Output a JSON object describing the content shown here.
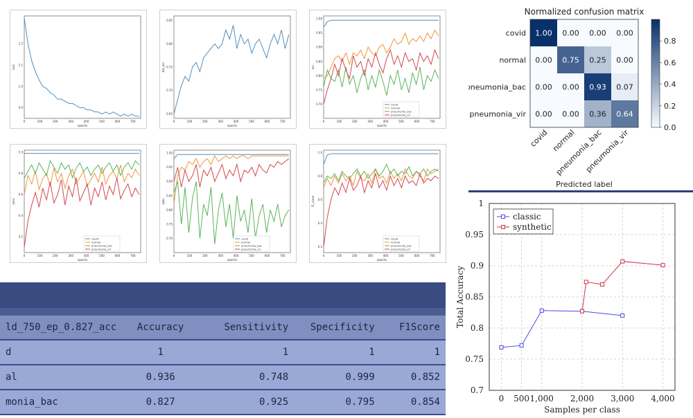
{
  "training_plots": [
    {
      "id": "loss",
      "ylabel": "loss",
      "xlabel": "epochs",
      "xlim": [
        0,
        750
      ],
      "ylim": [
        0.85,
        1.33
      ],
      "yticks": [
        "1.2",
        "1.1",
        "1.0",
        "0.9"
      ],
      "xticks": [
        "0",
        "100",
        "200",
        "300",
        "400",
        "500",
        "600",
        "700"
      ],
      "series": [
        {
          "color": "#4f8fbf",
          "y": [
            1.32,
            1.2,
            1.12,
            1.07,
            1.03,
            1.0,
            0.99,
            0.97,
            0.96,
            0.94,
            0.94,
            0.93,
            0.92,
            0.92,
            0.91,
            0.9,
            0.9,
            0.89,
            0.89,
            0.88,
            0.88,
            0.87,
            0.88,
            0.87,
            0.88,
            0.87,
            0.86,
            0.87,
            0.86,
            0.87,
            0.86,
            0.86
          ]
        }
      ]
    },
    {
      "id": "bal_acc",
      "ylabel": "bal_acc",
      "xlabel": "epochs",
      "xlim": [
        0,
        750
      ],
      "ylim": [
        0.64,
        0.86
      ],
      "yticks": [
        "0.85",
        "0.80",
        "0.75",
        "0.70",
        "0.65"
      ],
      "xticks": [
        "0",
        "100",
        "200",
        "300",
        "400",
        "500",
        "600",
        "700"
      ],
      "series": [
        {
          "color": "#4f8fbf",
          "y": [
            0.65,
            0.68,
            0.71,
            0.73,
            0.72,
            0.75,
            0.76,
            0.74,
            0.77,
            0.78,
            0.79,
            0.8,
            0.79,
            0.8,
            0.83,
            0.81,
            0.84,
            0.79,
            0.82,
            0.8,
            0.81,
            0.78,
            0.8,
            0.81,
            0.79,
            0.77,
            0.8,
            0.82,
            0.8,
            0.83,
            0.79,
            0.82
          ]
        }
      ]
    },
    {
      "id": "acc",
      "ylabel": "acc",
      "xlabel": "epochs",
      "xlim": [
        0,
        750
      ],
      "ylim": [
        0.65,
        1.01
      ],
      "yticks": [
        "1.00",
        "0.95",
        "0.90",
        "0.85",
        "0.80",
        "0.75",
        "0.70"
      ],
      "xticks": [
        "0",
        "100",
        "200",
        "300",
        "400",
        "500",
        "600",
        "700"
      ],
      "legend": [
        "covid",
        "normal",
        "pneumonia_bac",
        "pneumonia_vir"
      ],
      "series": [
        {
          "name": "covid",
          "color": "#4f8fbf",
          "y": [
            0.97,
            0.99,
            0.995,
            0.995,
            0.995,
            0.995,
            0.995,
            0.995,
            0.995,
            0.995,
            0.995,
            0.995,
            0.995,
            0.995,
            0.995,
            0.995,
            0.995,
            0.995,
            0.995,
            0.995,
            0.995,
            0.995,
            0.995,
            0.995,
            0.995,
            0.995,
            0.995,
            0.995,
            0.995,
            0.995,
            0.995,
            0.995
          ]
        },
        {
          "name": "normal",
          "color": "#f0953a",
          "y": [
            0.79,
            0.8,
            0.83,
            0.86,
            0.87,
            0.85,
            0.88,
            0.84,
            0.88,
            0.87,
            0.89,
            0.86,
            0.9,
            0.88,
            0.87,
            0.9,
            0.91,
            0.88,
            0.9,
            0.93,
            0.91,
            0.92,
            0.95,
            0.91,
            0.93,
            0.92,
            0.94,
            0.92,
            0.95,
            0.93,
            0.96,
            0.94
          ]
        },
        {
          "name": "pneumonia_bac",
          "color": "#59b35a",
          "y": [
            0.76,
            0.82,
            0.79,
            0.78,
            0.82,
            0.76,
            0.83,
            0.77,
            0.8,
            0.74,
            0.79,
            0.82,
            0.75,
            0.8,
            0.76,
            0.82,
            0.78,
            0.73,
            0.8,
            0.77,
            0.82,
            0.75,
            0.79,
            0.74,
            0.81,
            0.77,
            0.83,
            0.75,
            0.8,
            0.78,
            0.82,
            0.79
          ]
        },
        {
          "name": "pneumonia_vir",
          "color": "#d4454b",
          "y": [
            0.7,
            0.75,
            0.79,
            0.84,
            0.8,
            0.86,
            0.82,
            0.79,
            0.87,
            0.83,
            0.85,
            0.8,
            0.86,
            0.83,
            0.88,
            0.84,
            0.81,
            0.86,
            0.89,
            0.84,
            0.87,
            0.83,
            0.88,
            0.85,
            0.86,
            0.82,
            0.88,
            0.85,
            0.87,
            0.84,
            0.89,
            0.86
          ]
        }
      ]
    },
    {
      "id": "sens",
      "ylabel": "sens",
      "xlabel": "epochs",
      "xlim": [
        0,
        750
      ],
      "ylim": [
        0.05,
        1.02
      ],
      "yticks": [
        "1.0",
        "0.8",
        "0.6",
        "0.4",
        "0.2"
      ],
      "xticks": [
        "0",
        "100",
        "200",
        "300",
        "400",
        "500",
        "600",
        "700"
      ],
      "legend": [
        "covid",
        "normal",
        "pneumonia_bac",
        "pneumonia_vir"
      ],
      "series": [
        {
          "name": "covid",
          "color": "#4f8fbf",
          "y": [
            0.99,
            0.99,
            0.99,
            0.99,
            0.99,
            0.99,
            0.99,
            0.99,
            0.99,
            0.99,
            0.99,
            0.99,
            0.99,
            0.99,
            0.99,
            0.99,
            0.99,
            0.99,
            0.99,
            0.99,
            0.99,
            0.99,
            0.99,
            0.99,
            0.99,
            0.99,
            0.99,
            0.99,
            0.99,
            0.99,
            0.99,
            0.99
          ]
        },
        {
          "name": "normal",
          "color": "#f0953a",
          "y": [
            0.6,
            0.78,
            0.7,
            0.82,
            0.65,
            0.75,
            0.8,
            0.68,
            0.85,
            0.72,
            0.8,
            0.66,
            0.78,
            0.84,
            0.7,
            0.76,
            0.82,
            0.68,
            0.74,
            0.8,
            0.72,
            0.86,
            0.7,
            0.78,
            0.82,
            0.75,
            0.88,
            0.72,
            0.8,
            0.76,
            0.84,
            0.78
          ]
        },
        {
          "name": "pneumonia_bac",
          "color": "#59b35a",
          "y": [
            0.75,
            0.82,
            0.88,
            0.8,
            0.9,
            0.84,
            0.78,
            0.92,
            0.86,
            0.8,
            0.9,
            0.84,
            0.88,
            0.76,
            0.85,
            0.9,
            0.82,
            0.86,
            0.78,
            0.84,
            0.88,
            0.8,
            0.86,
            0.9,
            0.82,
            0.88,
            0.78,
            0.86,
            0.9,
            0.84,
            0.92,
            0.88
          ]
        },
        {
          "name": "pneumonia_vir",
          "color": "#d4454b",
          "y": [
            0.1,
            0.35,
            0.5,
            0.62,
            0.48,
            0.66,
            0.55,
            0.72,
            0.52,
            0.6,
            0.74,
            0.5,
            0.68,
            0.58,
            0.76,
            0.54,
            0.62,
            0.7,
            0.5,
            0.66,
            0.58,
            0.72,
            0.55,
            0.68,
            0.6,
            0.76,
            0.56,
            0.64,
            0.7,
            0.58,
            0.66,
            0.6
          ]
        }
      ]
    },
    {
      "id": "spec",
      "ylabel": "spec",
      "xlabel": "epochs",
      "xlim": [
        0,
        750
      ],
      "ylim": [
        0.65,
        1.01
      ],
      "yticks": [
        "1.00",
        "0.95",
        "0.90",
        "0.85",
        "0.80",
        "0.75",
        "0.70"
      ],
      "xticks": [
        "0",
        "100",
        "200",
        "300",
        "400",
        "500",
        "600",
        "700"
      ],
      "legend": [
        "covid",
        "normal",
        "pneumonia_bac",
        "pneumonia_vir"
      ],
      "series": [
        {
          "name": "covid",
          "color": "#4f8fbf",
          "y": [
            0.98,
            0.995,
            0.995,
            0.995,
            0.995,
            0.995,
            0.995,
            0.995,
            0.995,
            0.995,
            0.995,
            0.995,
            0.995,
            0.995,
            0.995,
            0.995,
            0.995,
            0.995,
            0.995,
            0.995,
            0.995,
            0.995,
            0.995,
            0.995,
            0.995,
            0.995,
            0.995,
            0.995,
            0.995,
            0.995,
            0.995,
            0.995
          ]
        },
        {
          "name": "normal",
          "color": "#f0953a",
          "y": [
            0.82,
            0.92,
            0.95,
            0.94,
            0.97,
            0.96,
            0.98,
            0.95,
            0.97,
            0.98,
            0.96,
            0.99,
            0.97,
            0.98,
            0.99,
            0.98,
            0.99,
            0.98,
            0.99,
            0.99,
            0.98,
            0.99,
            0.99,
            0.99,
            0.99,
            0.99,
            0.99,
            0.99,
            0.99,
            0.99,
            0.99,
            0.99
          ]
        },
        {
          "name": "pneumonia_bac",
          "color": "#59b35a",
          "y": [
            0.86,
            0.9,
            0.75,
            0.88,
            0.72,
            0.84,
            0.9,
            0.7,
            0.82,
            0.78,
            0.88,
            0.68,
            0.8,
            0.86,
            0.74,
            0.82,
            0.7,
            0.85,
            0.76,
            0.8,
            0.72,
            0.84,
            0.7,
            0.78,
            0.82,
            0.72,
            0.8,
            0.76,
            0.82,
            0.74,
            0.78,
            0.8
          ]
        },
        {
          "name": "pneumonia_vir",
          "color": "#d4454b",
          "y": [
            0.9,
            0.95,
            0.88,
            0.94,
            0.9,
            0.92,
            0.96,
            0.88,
            0.94,
            0.92,
            0.95,
            0.9,
            0.93,
            0.96,
            0.91,
            0.94,
            0.92,
            0.96,
            0.9,
            0.94,
            0.93,
            0.95,
            0.92,
            0.96,
            0.94,
            0.93,
            0.96,
            0.95,
            0.97,
            0.96,
            0.97,
            0.98
          ]
        }
      ]
    },
    {
      "id": "f1",
      "ylabel": "f1_score",
      "xlabel": "epochs",
      "xlim": [
        0,
        750
      ],
      "ylim": [
        0.15,
        1.02
      ],
      "yticks": [
        "1.0",
        "0.8",
        "0.6",
        "0.4",
        "0.2"
      ],
      "xticks": [
        "0",
        "100",
        "200",
        "300",
        "400",
        "500",
        "600",
        "700"
      ],
      "legend": [
        "covid",
        "normal",
        "pneumonia_bac",
        "pneumonia_vir"
      ],
      "series": [
        {
          "name": "covid",
          "color": "#4f8fbf",
          "y": [
            0.9,
            0.98,
            0.99,
            0.99,
            0.99,
            0.99,
            0.99,
            0.99,
            0.99,
            0.99,
            0.99,
            0.99,
            0.99,
            0.99,
            0.99,
            0.99,
            0.99,
            0.99,
            0.99,
            0.99,
            0.99,
            0.99,
            0.99,
            0.99,
            0.99,
            0.99,
            0.99,
            0.99,
            0.99,
            0.99,
            0.99,
            0.99
          ]
        },
        {
          "name": "normal",
          "color": "#f0953a",
          "y": [
            0.7,
            0.78,
            0.72,
            0.8,
            0.74,
            0.82,
            0.76,
            0.8,
            0.72,
            0.84,
            0.78,
            0.76,
            0.82,
            0.74,
            0.86,
            0.78,
            0.8,
            0.74,
            0.84,
            0.78,
            0.82,
            0.76,
            0.86,
            0.8,
            0.78,
            0.84,
            0.8,
            0.76,
            0.86,
            0.82,
            0.84,
            0.86
          ]
        },
        {
          "name": "pneumonia_bac",
          "color": "#59b35a",
          "y": [
            0.74,
            0.8,
            0.78,
            0.82,
            0.76,
            0.84,
            0.8,
            0.78,
            0.82,
            0.86,
            0.8,
            0.84,
            0.78,
            0.82,
            0.86,
            0.8,
            0.84,
            0.9,
            0.82,
            0.86,
            0.8,
            0.84,
            0.82,
            0.88,
            0.8,
            0.84,
            0.82,
            0.86,
            0.8,
            0.84,
            0.86,
            0.84
          ]
        },
        {
          "name": "pneumonia_vir",
          "color": "#d4454b",
          "y": [
            0.2,
            0.45,
            0.6,
            0.7,
            0.64,
            0.74,
            0.66,
            0.78,
            0.68,
            0.72,
            0.8,
            0.66,
            0.76,
            0.7,
            0.82,
            0.7,
            0.76,
            0.68,
            0.8,
            0.72,
            0.78,
            0.7,
            0.8,
            0.74,
            0.76,
            0.72,
            0.82,
            0.74,
            0.78,
            0.76,
            0.8,
            0.78
          ]
        }
      ]
    }
  ],
  "confusion_matrix": {
    "title": "Normalized confusion matrix",
    "xlabel": "Predicted label",
    "row_labels": [
      "covid",
      "normal",
      "pneumonia_bac",
      "pneumonia_vir"
    ],
    "col_labels": [
      "covid",
      "normal",
      "pneumonia_bac",
      "pneumonia_vir"
    ],
    "values": [
      [
        "1.00",
        "0.00",
        "0.00",
        "0.00"
      ],
      [
        "0.00",
        "0.75",
        "0.25",
        "0.00"
      ],
      [
        "0.00",
        "0.00",
        "0.93",
        "0.07"
      ],
      [
        "0.00",
        "0.00",
        "0.36",
        "0.64"
      ]
    ],
    "numeric": [
      [
        1.0,
        0.0,
        0.0,
        0.0
      ],
      [
        0.0,
        0.75,
        0.25,
        0.0
      ],
      [
        0.0,
        0.0,
        0.93,
        0.07
      ],
      [
        0.0,
        0.0,
        0.36,
        0.64
      ]
    ],
    "colorbar_ticks": [
      "0.8",
      "0.6",
      "0.4",
      "0.2",
      "0.0"
    ]
  },
  "results_table": {
    "headers": [
      "ld_750_ep_0.827_acc",
      "Accuracy",
      "Sensitivity",
      "Specificity",
      "F1Score"
    ],
    "rows": [
      [
        "d",
        "1",
        "1",
        "1",
        "1"
      ],
      [
        "al",
        "0.936",
        "0.748",
        "0.999",
        "0.852"
      ],
      [
        "monia_bac",
        "0.827",
        "0.925",
        "0.795",
        "0.854"
      ]
    ]
  },
  "chart_data": {
    "type": "line",
    "xlabel": "Samples per class",
    "ylabel": "Total Accuracy",
    "xlim": [
      -300,
      4300
    ],
    "ylim": [
      0.7,
      1.0
    ],
    "xticks": [
      "0",
      "500",
      "1,000",
      "2,000",
      "3,000",
      "4,000"
    ],
    "yticks": [
      "1",
      "0.95",
      "0.9",
      "0.85",
      "0.8",
      "0.75",
      "0.7"
    ],
    "grid": true,
    "legend_position": "top-left",
    "series": [
      {
        "name": "classic",
        "color": "#4a4ae0",
        "marker": "square",
        "x": [
          0,
          500,
          1000,
          2000,
          3000
        ],
        "y": [
          0.769,
          0.772,
          0.828,
          0.827,
          0.82
        ]
      },
      {
        "name": "synthetic",
        "color": "#d0304a",
        "marker": "square",
        "x": [
          2000,
          2100,
          2500,
          3000,
          4000
        ],
        "y": [
          0.827,
          0.874,
          0.87,
          0.907,
          0.901
        ]
      }
    ]
  }
}
